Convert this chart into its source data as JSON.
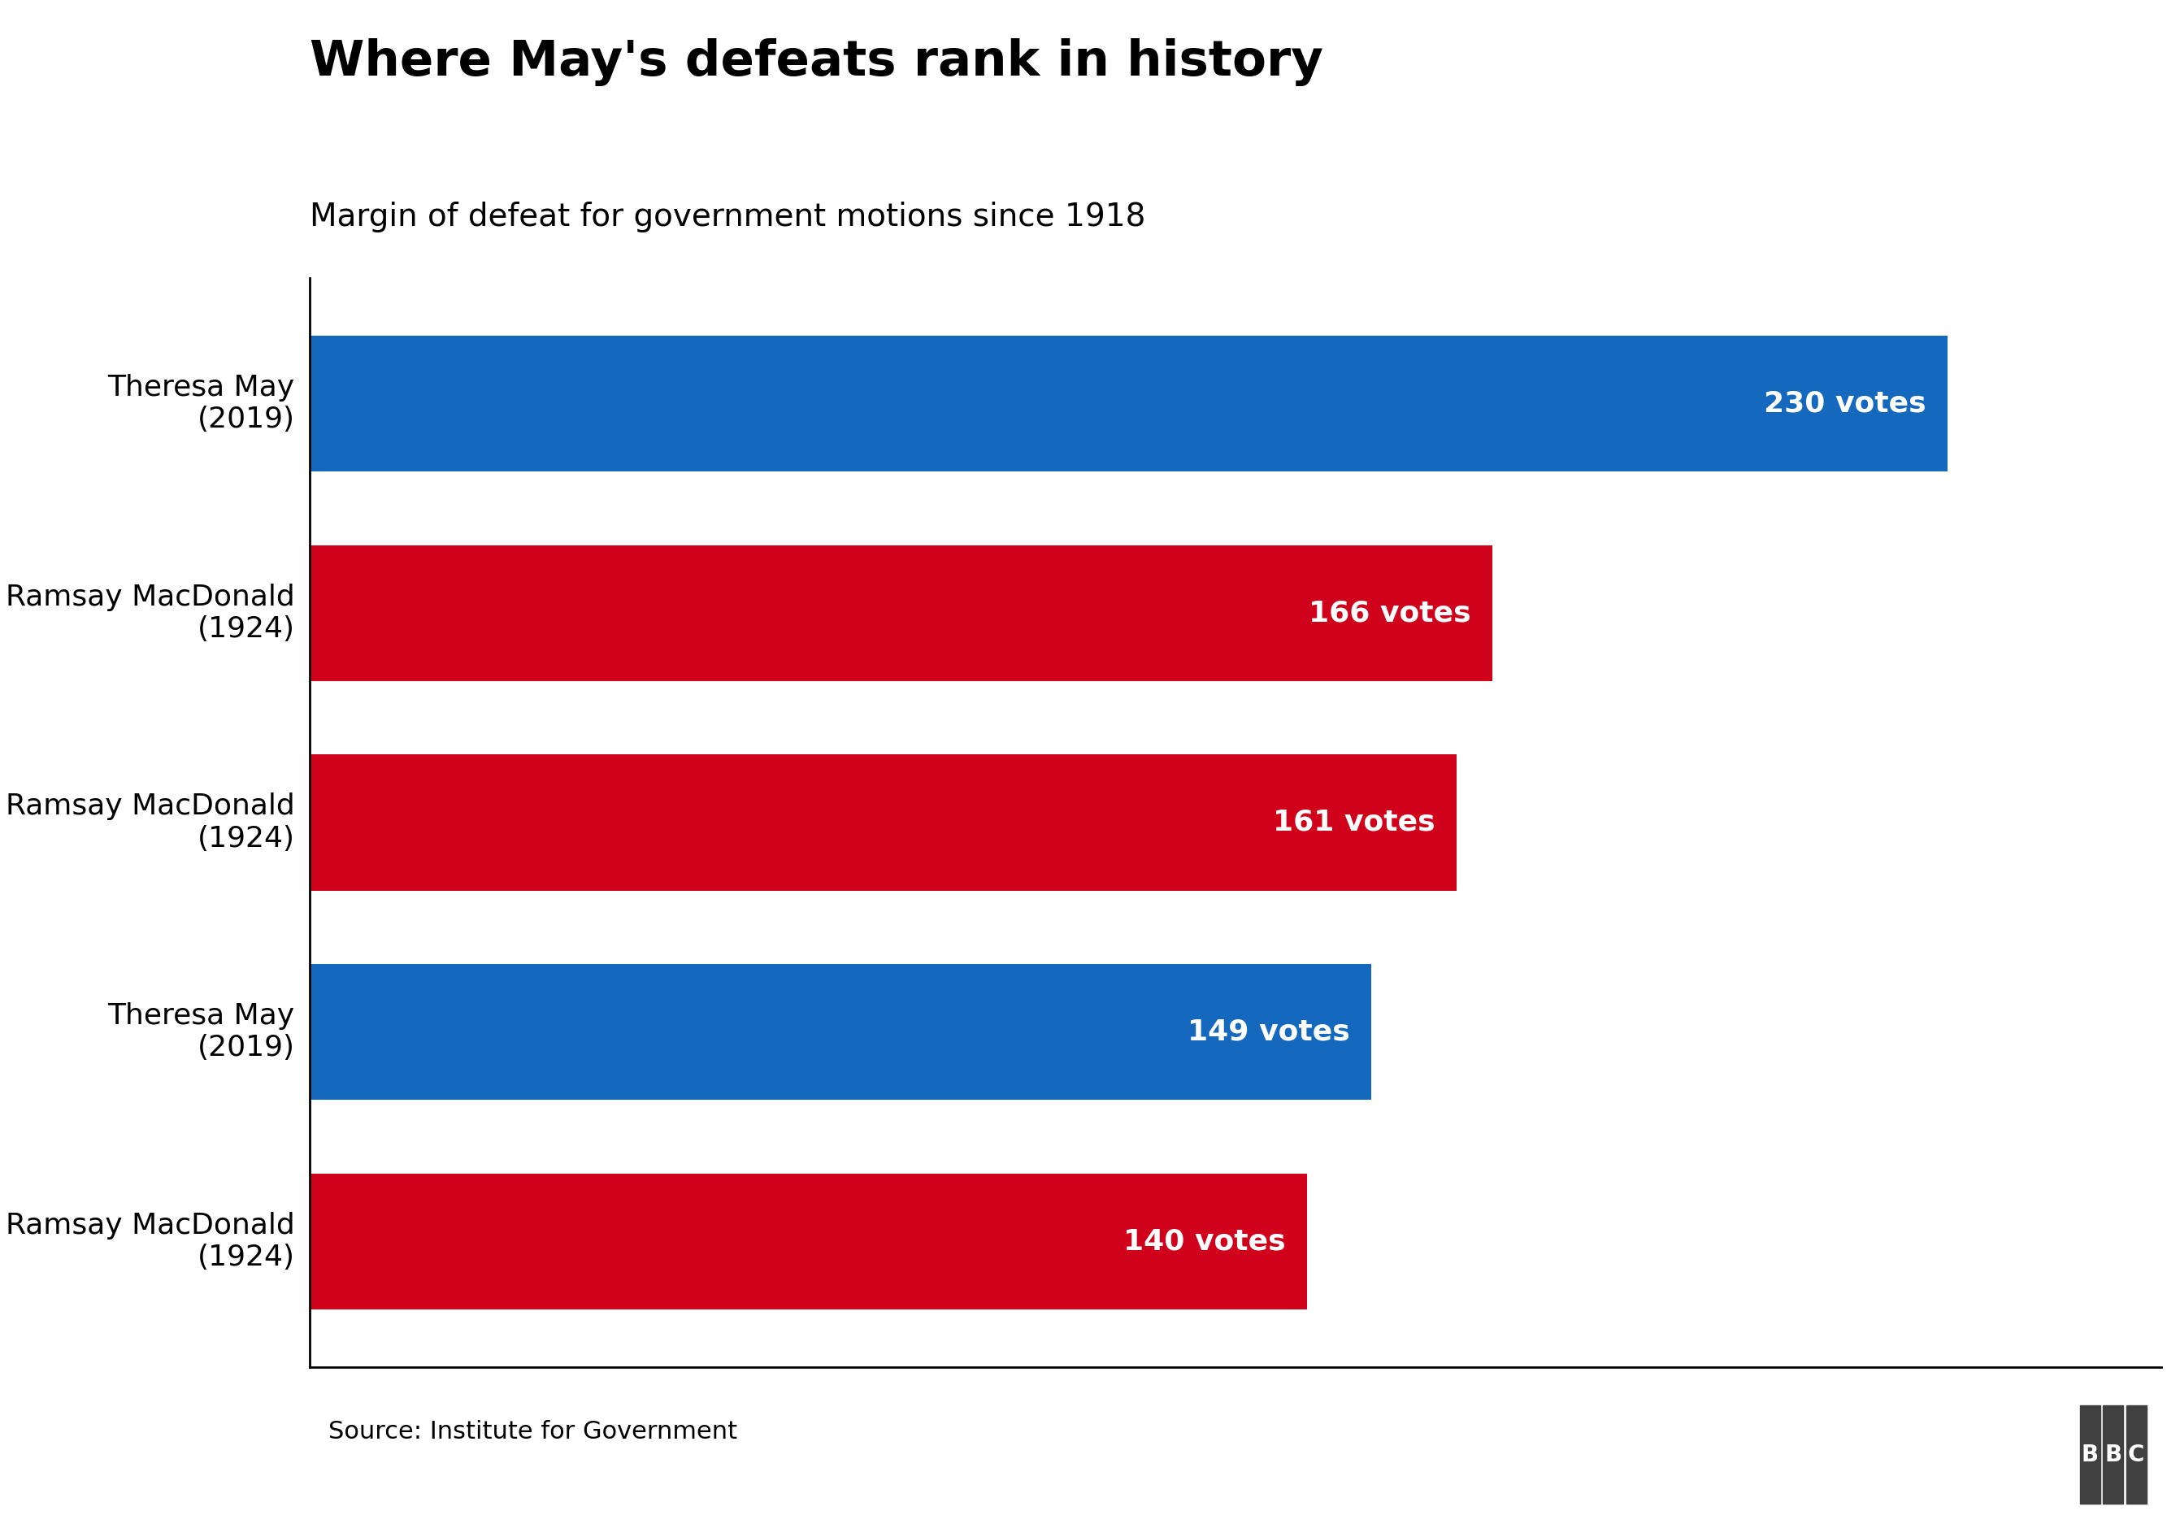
{
  "title": "Where May's defeats rank in history",
  "subtitle": "Margin of defeat for government motions since 1918",
  "source": "Source: Institute for Government",
  "categories": [
    "Theresa May\n(2019)",
    "Ramsay MacDonald\n(1924)",
    "Ramsay MacDonald\n(1924)",
    "Theresa May\n(2019)",
    "Ramsay MacDonald\n(1924)"
  ],
  "values": [
    230,
    166,
    161,
    149,
    140
  ],
  "colors": [
    "#1469be",
    "#d0021b",
    "#d0021b",
    "#1469be",
    "#d0021b"
  ],
  "label_texts": [
    "230 votes",
    "166 votes",
    "161 votes",
    "149 votes",
    "140 votes"
  ],
  "xlim": [
    0,
    260
  ],
  "background_color": "#ffffff",
  "title_fontsize": 44,
  "subtitle_fontsize": 28,
  "tick_label_fontsize": 26,
  "source_fontsize": 22,
  "bar_label_fontsize": 26,
  "bbc_color": "#404040"
}
